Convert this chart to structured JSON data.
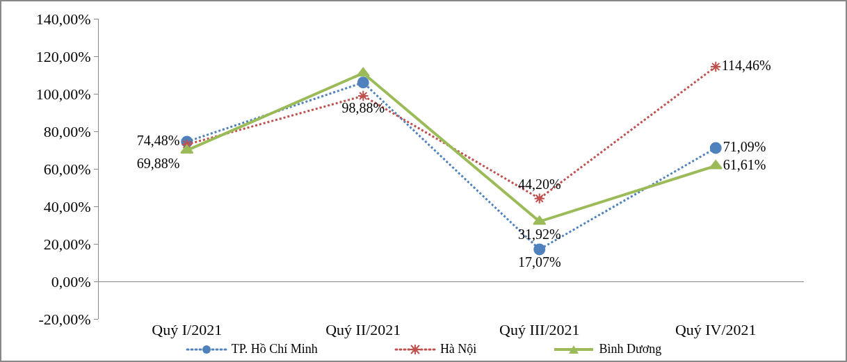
{
  "chart_data": {
    "type": "line",
    "categories": [
      "Quý I/2021",
      "Quý II/2021",
      "Quý III/2021",
      "Quý IV/2021"
    ],
    "ylim": [
      -20,
      140
    ],
    "yticks": [
      {
        "value": -20,
        "label": "-20,00%"
      },
      {
        "value": 0,
        "label": "0,00%"
      },
      {
        "value": 20,
        "label": "20,00%"
      },
      {
        "value": 40,
        "label": "40,00%"
      },
      {
        "value": 60,
        "label": "60,00%"
      },
      {
        "value": 80,
        "label": "80,00%"
      },
      {
        "value": 100,
        "label": "100,00%"
      },
      {
        "value": 120,
        "label": "120,00%"
      },
      {
        "value": 140,
        "label": "140,00%"
      }
    ],
    "grid": false,
    "legend": "bottom",
    "series": [
      {
        "name": "TP. Hồ Chí Minh",
        "color": "#4f81bd",
        "values": [
          74.48,
          106,
          17.07,
          71.09
        ],
        "value_labels": [
          "74,48%",
          null,
          "17,07%",
          "71,09%"
        ],
        "marker": "circle",
        "line_style": "dotted"
      },
      {
        "name": "Hà Nội",
        "color": "#c0504d",
        "values": [
          73,
          98.88,
          44.2,
          114.46
        ],
        "value_labels": [
          null,
          "98,88%",
          "44,20%",
          "114,46%"
        ],
        "marker": "cross",
        "line_style": "dotted"
      },
      {
        "name": "Bình Dương",
        "color": "#9bbb59",
        "values": [
          69.88,
          111,
          31.92,
          61.61
        ],
        "value_labels": [
          "69,88%",
          null,
          "31,92%",
          "61,61%"
        ],
        "marker": "triangle",
        "line_style": "solid"
      }
    ]
  }
}
